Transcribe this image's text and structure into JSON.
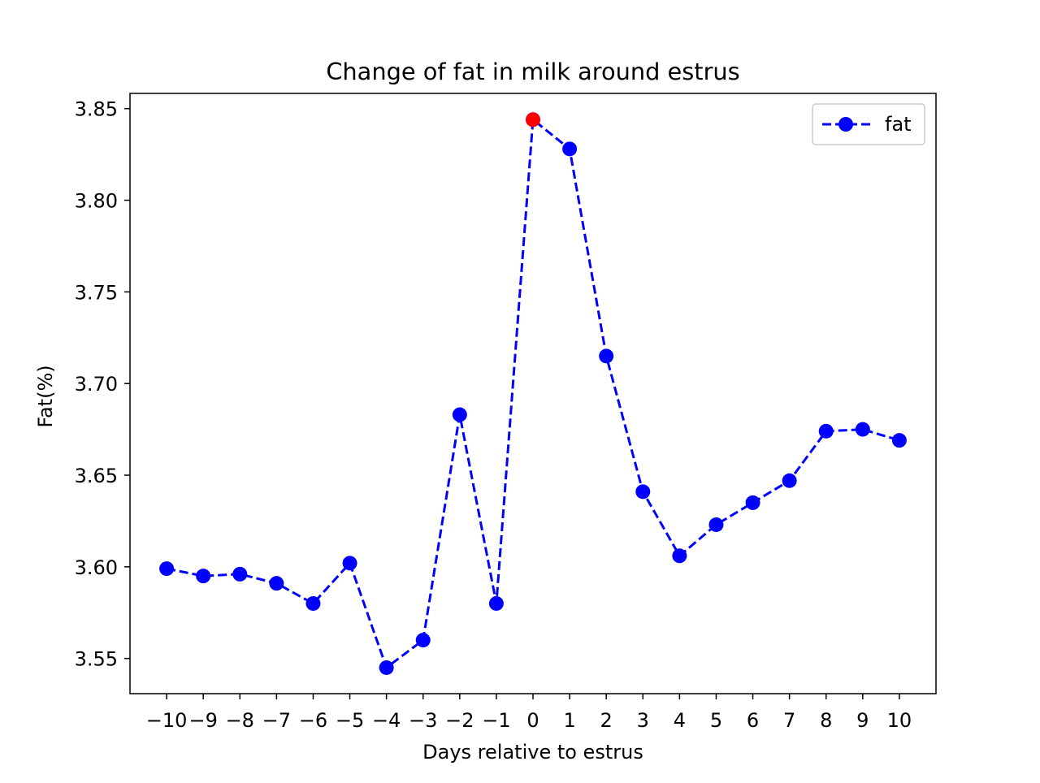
{
  "chart_data": {
    "type": "line",
    "title": "Change of fat in milk around estrus",
    "xlabel": "Days relative to estrus",
    "ylabel": "Fat(%)",
    "x": [
      -10,
      -9,
      -8,
      -7,
      -6,
      -5,
      -4,
      -3,
      -2,
      -1,
      0,
      1,
      2,
      3,
      4,
      5,
      6,
      7,
      8,
      9,
      10
    ],
    "x_tick_labels": [
      "−10",
      "−9",
      "−8",
      "−7",
      "−6",
      "−5",
      "−4",
      "−3",
      "−2",
      "−1",
      "0",
      "1",
      "2",
      "3",
      "4",
      "5",
      "6",
      "7",
      "8",
      "9",
      "10"
    ],
    "y_ticks": [
      3.55,
      3.6,
      3.65,
      3.7,
      3.75,
      3.8,
      3.85
    ],
    "y_tick_labels": [
      "3.55",
      "3.60",
      "3.65",
      "3.70",
      "3.75",
      "3.80",
      "3.85"
    ],
    "xlim": [
      -11,
      11
    ],
    "ylim": [
      3.5308,
      3.8583
    ],
    "grid": false,
    "legend_position": "upper right",
    "series": [
      {
        "name": "fat",
        "color": "#0000ff",
        "line_style": "dashed",
        "marker": "circle",
        "values": [
          3.599,
          3.595,
          3.596,
          3.591,
          3.58,
          3.602,
          3.545,
          3.56,
          3.683,
          3.58,
          3.844,
          3.828,
          3.715,
          3.641,
          3.606,
          3.623,
          3.635,
          3.647,
          3.674,
          3.675,
          3.669
        ]
      }
    ],
    "highlight": {
      "x": 0,
      "value": 3.844,
      "color": "#ff0000"
    }
  }
}
